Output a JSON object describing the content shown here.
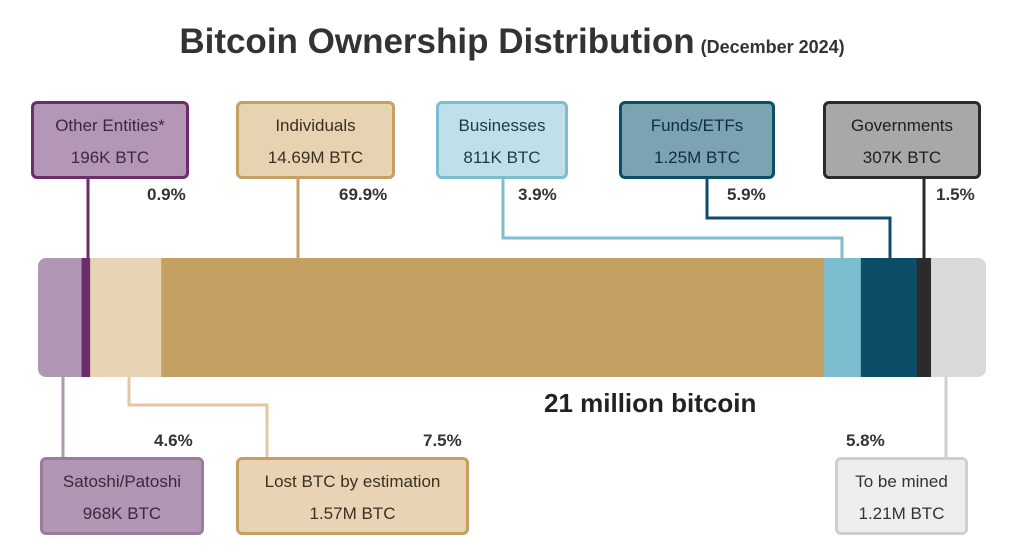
{
  "title": "Bitcoin Ownership Distribution",
  "subtitle": "(December 2024)",
  "total_label": "21 million bitcoin",
  "chart_data": {
    "type": "bar",
    "orientation": "horizontal-stacked",
    "total_btc": 21000000,
    "segments": [
      {
        "name": "Satoshi/Patoshi",
        "btc_label": "968K BTC",
        "pct_label": "4.6%",
        "value": 4.6,
        "color": "#b097b3",
        "text_color": "#3a2a3c",
        "box_position": "below"
      },
      {
        "name": "Other Entities*",
        "btc_label": "196K BTC",
        "pct_label": "0.9%",
        "value": 0.9,
        "color": "#6b2d6b",
        "box_color": "#b497b7",
        "text_color": "#3a2a3c",
        "box_position": "above"
      },
      {
        "name": "Lost BTC by estimation",
        "btc_label": "1.57M BTC",
        "pct_label": "7.5%",
        "value": 7.5,
        "color": "#e8d4b4",
        "text_color": "#3a3020",
        "box_position": "below"
      },
      {
        "name": "Individuals",
        "btc_label": "14.69M BTC",
        "pct_label": "69.9%",
        "value": 69.9,
        "color": "#c4a062",
        "box_color": "#e7d3b2",
        "text_color": "#3a3020",
        "box_position": "above"
      },
      {
        "name": "Businesses",
        "btc_label": "811K BTC",
        "pct_label": "3.9%",
        "value": 3.9,
        "color": "#7dbdd0",
        "box_color": "#bfe0ea",
        "text_color": "#1e3a44",
        "box_position": "above"
      },
      {
        "name": "Funds/ETFs",
        "btc_label": "1.25M BTC",
        "pct_label": "5.9%",
        "value": 5.9,
        "color": "#0c4e67",
        "box_color": "#7ba3b2",
        "text_color": "#0d2f3d",
        "box_position": "above"
      },
      {
        "name": "Governments",
        "btc_label": "307K BTC",
        "pct_label": "1.5%",
        "value": 1.5,
        "color": "#2b2b2b",
        "box_color": "#a8a8a8",
        "text_color": "#1e1e1e",
        "box_position": "above"
      },
      {
        "name": "To be mined",
        "btc_label": "1.21M BTC",
        "pct_label": "5.8%",
        "value": 5.8,
        "color": "#d9d9d9",
        "box_color": "#eeeeee",
        "text_color": "#333333",
        "box_position": "below"
      }
    ]
  }
}
